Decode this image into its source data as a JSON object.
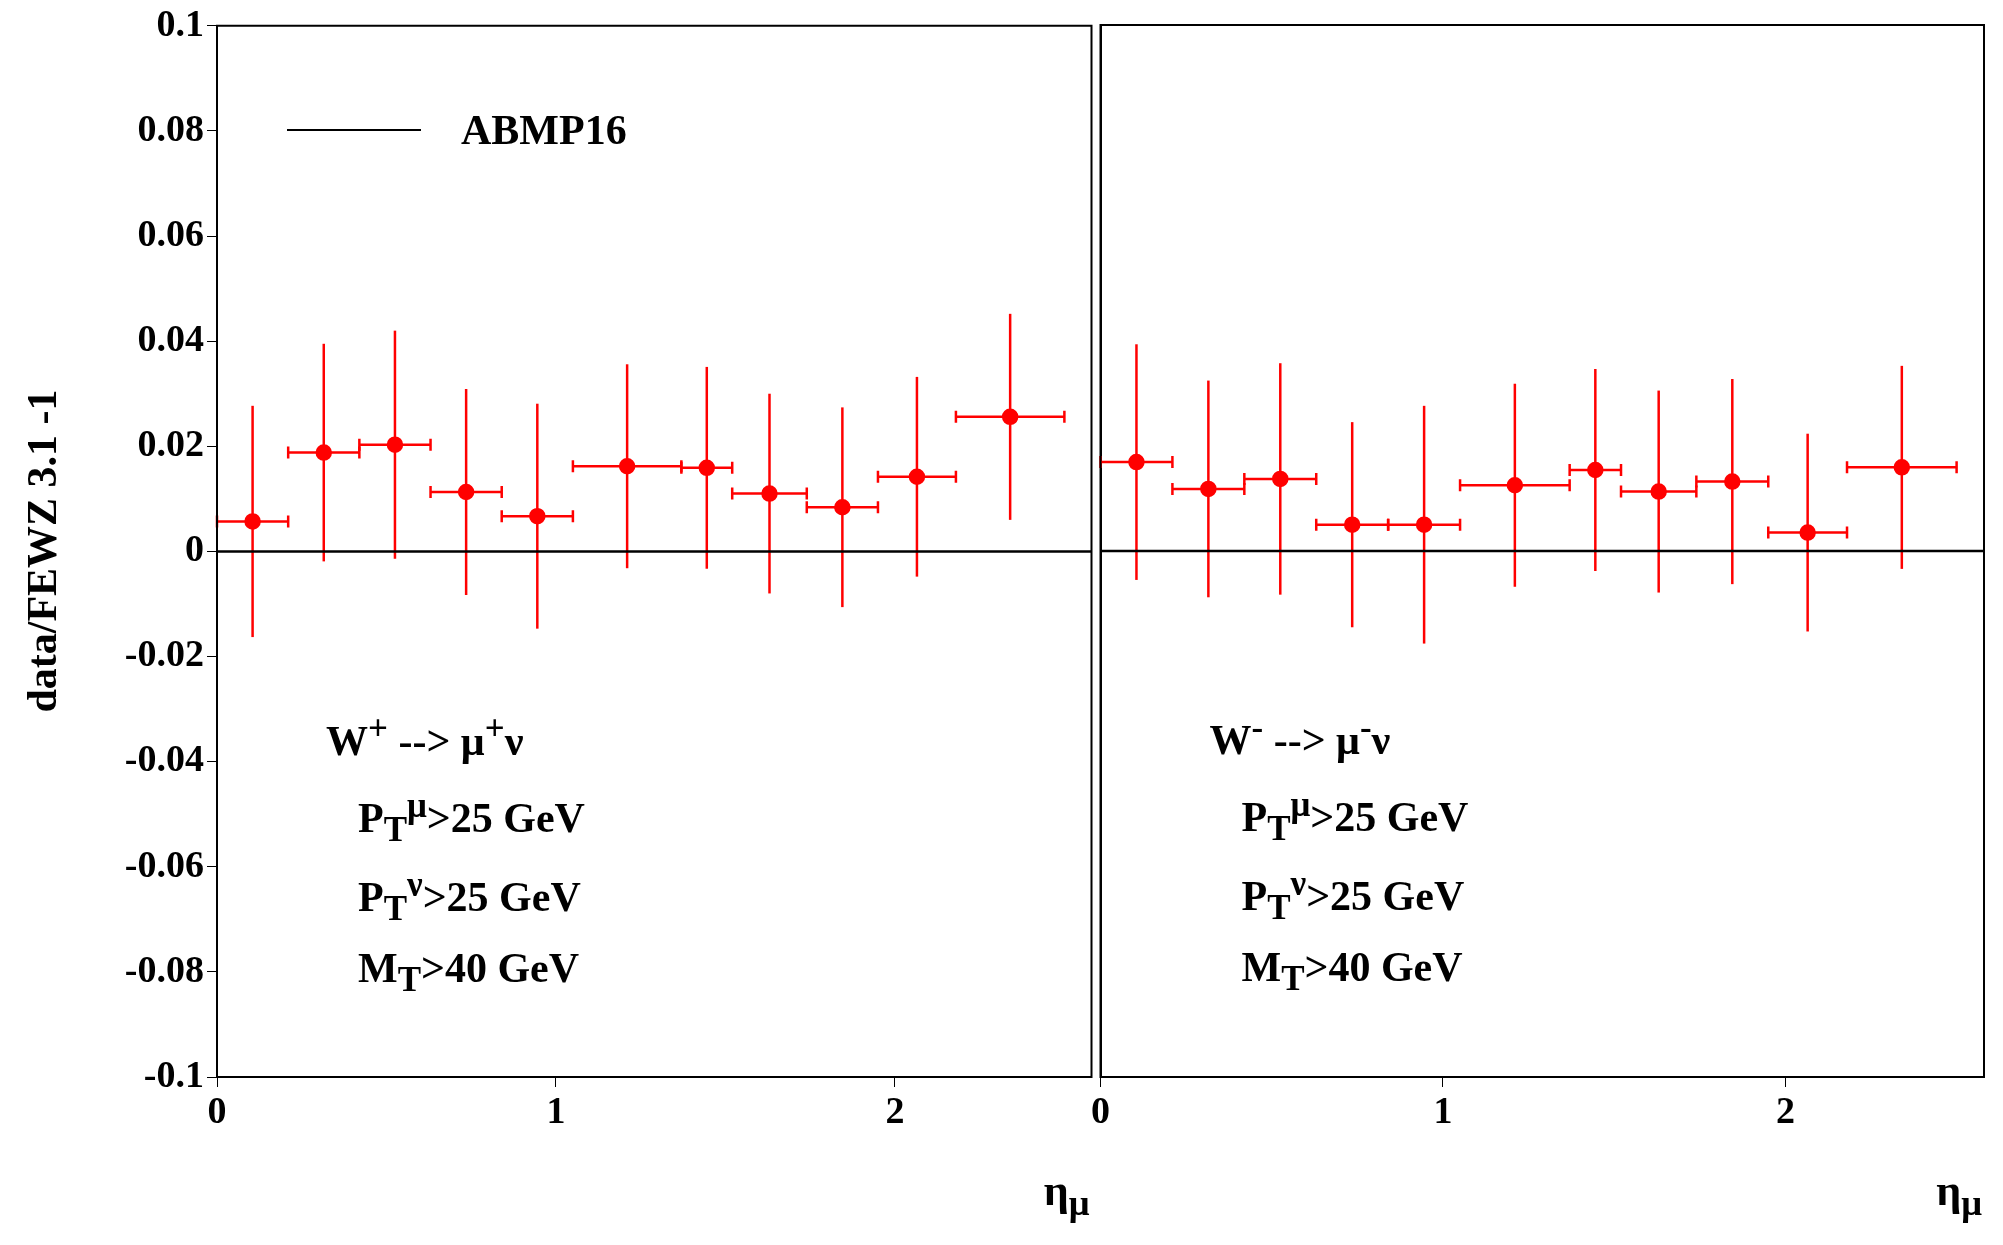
{
  "chart_data": [
    {
      "type": "scatter",
      "ylabel": "data/FEWZ 3.1 -1",
      "xlabel": "η$_{μ}$",
      "xlim": [
        0,
        2.58
      ],
      "xticks": [
        0,
        1,
        2
      ],
      "ylim": [
        -0.1,
        0.1
      ],
      "yticks": [
        -0.1,
        -0.08,
        -0.06,
        -0.04,
        -0.02,
        0,
        0.02,
        0.04,
        0.06,
        0.08,
        0.1
      ],
      "grid": false,
      "legend": "top left",
      "marker": "circle",
      "annotations": [
        "W$^{+}$ --> μ$^{+}$ν",
        "P$_{T}$$^{μ}$>25 GeV",
        "P$_{T}$$^{ν}$>25 GeV",
        "M$_{T}$>40 GeV"
      ],
      "series": [
        {
          "type": "line",
          "name": "ABMP16",
          "color": "#000000",
          "marker": "none",
          "x": [
            0,
            2.58
          ],
          "values": [
            0,
            0
          ]
        },
        {
          "color": "#ff0000",
          "x": [
            0.105,
            0.315,
            0.525,
            0.735,
            0.945,
            1.21,
            1.445,
            1.63,
            1.845,
            2.065,
            2.34
          ],
          "values": [
            0.0057,
            0.0188,
            0.0203,
            0.0113,
            0.0067,
            0.0162,
            0.0159,
            0.011,
            0.0084,
            0.0142,
            0.0256
          ],
          "errors": [
            0.022,
            0.0207,
            0.0217,
            0.0196,
            0.0214,
            0.0194,
            0.0192,
            0.019,
            0.019,
            0.019,
            0.0196
          ],
          "xerrors": [
            0.105,
            0.105,
            0.105,
            0.105,
            0.105,
            0.16,
            0.075,
            0.11,
            0.105,
            0.115,
            0.16
          ]
        }
      ]
    },
    {
      "type": "scatter",
      "xlabel": "η$_{μ}$",
      "xlim": [
        0,
        2.58
      ],
      "xticks": [
        0,
        1,
        2
      ],
      "ylim": [
        -0.1,
        0.1
      ],
      "yticks": [
        -0.1,
        -0.08,
        -0.06,
        -0.04,
        -0.02,
        0,
        0.02,
        0.04,
        0.06,
        0.08,
        0.1
      ],
      "grid": false,
      "tick_labels": "x",
      "marker": "circle",
      "annotations": [
        "W$^{-}$ --> μ$^{-}$ν",
        "P$_{T}$$^{μ}$>25 GeV",
        "P$_{T}$$^{ν}$>25 GeV",
        "M$_{T}$>40 GeV"
      ],
      "series": [
        {
          "type": "line",
          "color": "#000000",
          "marker": "none",
          "x": [
            0,
            2.58
          ],
          "values": [
            0,
            0
          ]
        },
        {
          "color": "#ff0000",
          "x": [
            0.105,
            0.315,
            0.525,
            0.735,
            0.945,
            1.21,
            1.445,
            1.63,
            1.845,
            2.065,
            2.34
          ],
          "values": [
            0.0169,
            0.0118,
            0.0137,
            0.005,
            0.005,
            0.0125,
            0.0154,
            0.0113,
            0.0132,
            0.0035,
            0.0159
          ],
          "errors": [
            0.0224,
            0.0206,
            0.022,
            0.0195,
            0.0226,
            0.0193,
            0.0192,
            0.0192,
            0.0195,
            0.0188,
            0.0193
          ],
          "xerrors": [
            0.105,
            0.105,
            0.105,
            0.105,
            0.105,
            0.16,
            0.075,
            0.11,
            0.105,
            0.115,
            0.16
          ]
        }
      ]
    }
  ]
}
